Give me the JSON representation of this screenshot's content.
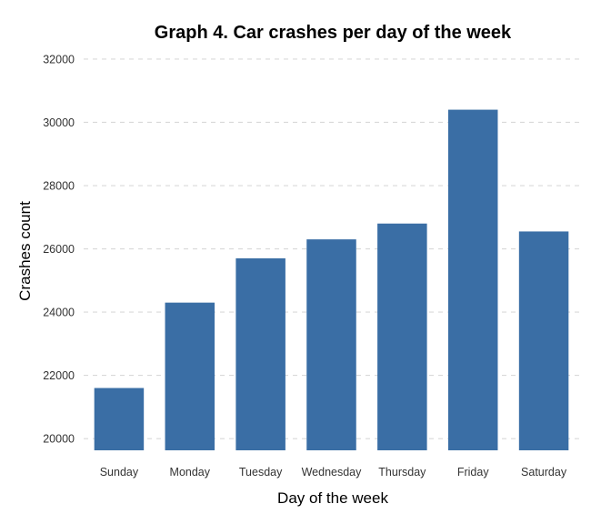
{
  "chart_data": {
    "type": "bar",
    "title": "Graph 4. Car crashes per day of the week",
    "xlabel": "Day of the week",
    "ylabel": "Crashes count",
    "categories": [
      "Sunday",
      "Monday",
      "Tuesday",
      "Wednesday",
      "Thursday",
      "Friday",
      "Saturday"
    ],
    "values": [
      21600,
      24300,
      25700,
      26300,
      26800,
      30400,
      26550
    ],
    "ylim": [
      19400,
      32200
    ],
    "yticks": [
      20000,
      22000,
      24000,
      26000,
      28000,
      30000,
      32000
    ],
    "grid": true,
    "bar_color": "#3A6EA5",
    "grid_color": "#D9D9D9"
  }
}
